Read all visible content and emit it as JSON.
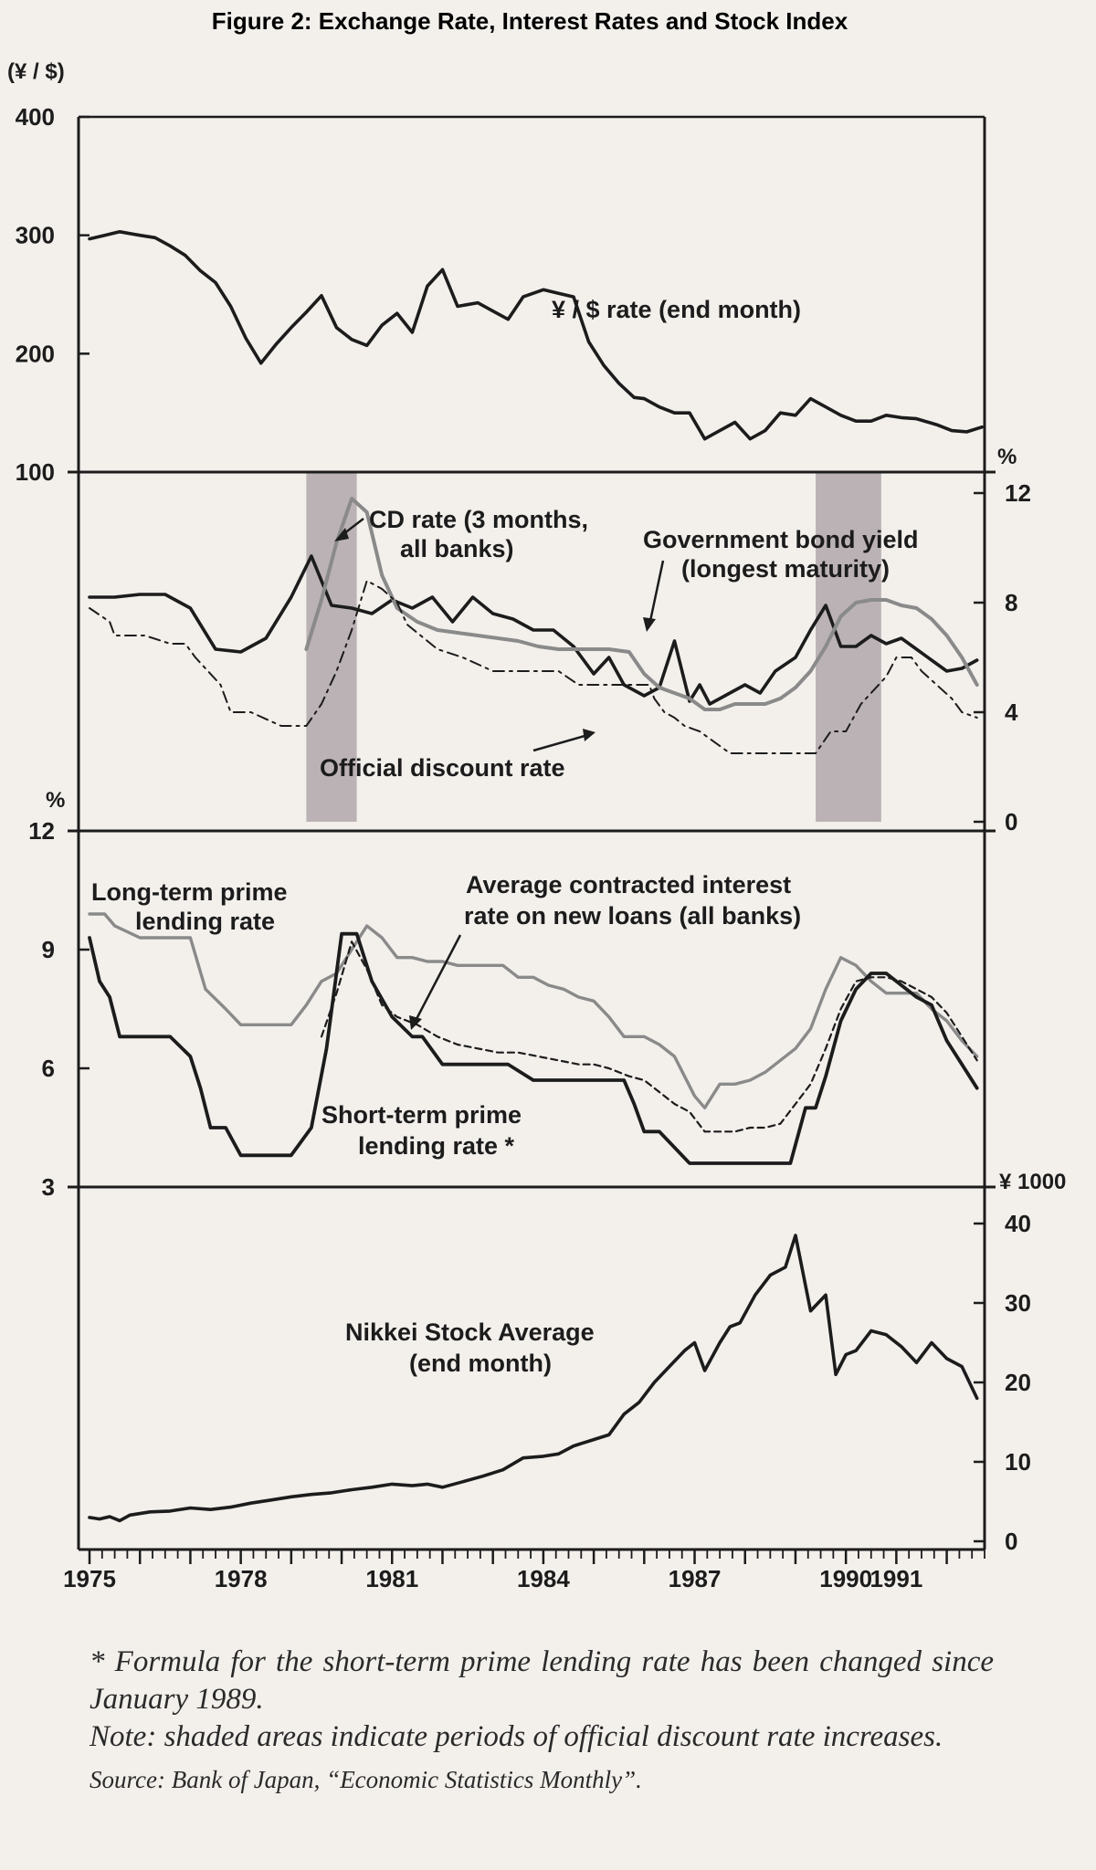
{
  "title": "Figure 2: Exchange Rate, Interest Rates and Stock Index",
  "colors": {
    "ink": "#1c1c1c",
    "gray_line": "#8a8a8a",
    "shade": "#8c7f88",
    "paper": "#f3f0ec"
  },
  "x_axis": {
    "ticks": [
      1975,
      1978,
      1981,
      1984,
      1987,
      1990,
      1991
    ],
    "tick_labels": [
      "1975",
      "1978",
      "1981",
      "1984",
      "1987",
      "1990",
      "1991"
    ]
  },
  "notes": [
    "* Formula for the short-term prime lending rate has been changed since January 1989.",
    "Note: shaded areas indicate periods of official discount rate increases."
  ],
  "source": "Source: Bank of Japan, “Economic Statistics Monthly”.",
  "chart_data": [
    {
      "type": "line",
      "unit_label": "(¥ / $)",
      "ylim": [
        100,
        400
      ],
      "y_ticks": [
        "400",
        "300",
        "200",
        "100"
      ],
      "series": [
        {
          "name": "¥ / $ rate (end month)",
          "x": [
            1975.0,
            1975.3,
            1975.6,
            1976.0,
            1976.3,
            1976.6,
            1976.9,
            1977.2,
            1977.5,
            1977.8,
            1978.1,
            1978.4,
            1978.7,
            1979.0,
            1979.3,
            1979.6,
            1979.9,
            1980.2,
            1980.5,
            1980.8,
            1981.1,
            1981.4,
            1981.7,
            1982.0,
            1982.3,
            1982.7,
            1983.0,
            1983.3,
            1983.6,
            1984.0,
            1984.3,
            1984.6,
            1984.9,
            1985.2,
            1985.5,
            1985.8,
            1986.0,
            1986.3,
            1986.6,
            1986.9,
            1987.2,
            1987.5,
            1987.8,
            1988.1,
            1988.4,
            1988.7,
            1989.0,
            1989.3,
            1989.6,
            1989.9,
            1990.2,
            1990.5,
            1990.8,
            1991.1,
            1991.4,
            1991.8,
            1992.1,
            1992.4,
            1992.7
          ],
          "y": [
            297,
            300,
            303,
            300,
            298,
            291,
            283,
            270,
            260,
            240,
            213,
            192,
            208,
            222,
            235,
            249,
            222,
            212,
            207,
            224,
            234,
            218,
            257,
            271,
            240,
            243,
            236,
            229,
            248,
            254,
            251,
            248,
            210,
            190,
            175,
            163,
            162,
            155,
            150,
            150,
            128,
            135,
            142,
            128,
            135,
            150,
            148,
            162,
            155,
            148,
            143,
            143,
            148,
            146,
            145,
            140,
            135,
            134,
            138
          ]
        }
      ]
    },
    {
      "type": "line",
      "unit_label": "%",
      "ylim": [
        0,
        12
      ],
      "y_ticks": [
        "12",
        "8",
        "4",
        "0"
      ],
      "shaded_periods": [
        [
          1979.3,
          1980.3
        ],
        [
          1989.4,
          1990.7
        ]
      ],
      "series": [
        {
          "name": "Government bond yield (longest maturity)",
          "x": [
            1975.0,
            1975.5,
            1976.0,
            1976.5,
            1977.0,
            1977.5,
            1978.0,
            1978.5,
            1979.0,
            1979.4,
            1979.8,
            1980.2,
            1980.6,
            1981.0,
            1981.4,
            1981.8,
            1982.2,
            1982.6,
            1983.0,
            1983.4,
            1983.8,
            1984.2,
            1984.6,
            1985.0,
            1985.3,
            1985.6,
            1986.0,
            1986.3,
            1986.6,
            1986.9,
            1987.1,
            1987.3,
            1987.6,
            1988.0,
            1988.3,
            1988.6,
            1989.0,
            1989.3,
            1989.6,
            1989.9,
            1990.2,
            1990.5,
            1990.8,
            1991.1,
            1991.4,
            1991.7,
            1992.0,
            1992.3,
            1992.6
          ],
          "y": [
            8.2,
            8.2,
            8.3,
            8.3,
            7.8,
            6.3,
            6.2,
            6.7,
            8.2,
            9.7,
            7.9,
            7.8,
            7.6,
            8.1,
            7.8,
            8.2,
            7.3,
            8.2,
            7.6,
            7.4,
            7.0,
            7.0,
            6.4,
            5.4,
            6.0,
            5.0,
            4.6,
            4.9,
            6.6,
            4.4,
            5.0,
            4.3,
            4.6,
            5.0,
            4.7,
            5.5,
            6.0,
            7.0,
            7.9,
            6.4,
            6.4,
            6.8,
            6.5,
            6.7,
            6.3,
            5.9,
            5.5,
            5.6,
            5.9
          ]
        },
        {
          "name": "CD rate (3 months, all banks)",
          "x": [
            1979.3,
            1979.6,
            1979.9,
            1980.2,
            1980.5,
            1980.8,
            1981.1,
            1981.5,
            1981.9,
            1982.3,
            1982.7,
            1983.1,
            1983.5,
            1983.9,
            1984.3,
            1984.7,
            1985.0,
            1985.3,
            1985.7,
            1986.0,
            1986.3,
            1986.6,
            1986.9,
            1987.2,
            1987.5,
            1987.8,
            1988.1,
            1988.4,
            1988.7,
            1989.0,
            1989.3,
            1989.6,
            1989.9,
            1990.2,
            1990.5,
            1990.8,
            1991.1,
            1991.4,
            1991.7,
            1992.0,
            1992.3,
            1992.6
          ],
          "y": [
            6.3,
            8.1,
            10.2,
            11.8,
            11.3,
            9.0,
            7.8,
            7.3,
            7.0,
            6.9,
            6.8,
            6.7,
            6.6,
            6.4,
            6.3,
            6.3,
            6.3,
            6.3,
            6.2,
            5.4,
            4.9,
            4.7,
            4.5,
            4.1,
            4.1,
            4.3,
            4.3,
            4.3,
            4.5,
            4.9,
            5.5,
            6.4,
            7.5,
            8.0,
            8.1,
            8.1,
            7.9,
            7.8,
            7.4,
            6.8,
            6.0,
            5.0
          ]
        },
        {
          "name": "Official discount rate",
          "x": [
            1975.0,
            1975.4,
            1975.5,
            1976.1,
            1976.6,
            1976.9,
            1977.1,
            1977.6,
            1977.8,
            1978.2,
            1978.8,
            1979.3,
            1979.6,
            1979.9,
            1980.2,
            1980.5,
            1980.8,
            1981.1,
            1981.3,
            1981.9,
            1982.4,
            1983.0,
            1983.5,
            1983.9,
            1984.3,
            1984.7,
            1985.1,
            1985.6,
            1986.1,
            1986.2,
            1986.4,
            1986.6,
            1986.8,
            1987.1,
            1987.7,
            1988.2,
            1988.6,
            1989.1,
            1989.4,
            1989.7,
            1990.0,
            1990.3,
            1990.8,
            1991.0,
            1991.3,
            1991.5,
            1991.8,
            1992.1,
            1992.3,
            1992.6
          ],
          "y": [
            7.8,
            7.3,
            6.8,
            6.8,
            6.5,
            6.5,
            6.0,
            5.0,
            4.0,
            4.0,
            3.5,
            3.5,
            4.3,
            5.5,
            7.0,
            8.8,
            8.5,
            8.0,
            7.2,
            6.3,
            6.0,
            5.5,
            5.5,
            5.5,
            5.5,
            5.0,
            5.0,
            5.0,
            5.0,
            4.5,
            4.0,
            3.8,
            3.5,
            3.3,
            2.5,
            2.5,
            2.5,
            2.5,
            2.5,
            3.3,
            3.3,
            4.3,
            5.3,
            6.0,
            6.0,
            5.5,
            5.0,
            4.5,
            4.0,
            3.8
          ]
        }
      ]
    },
    {
      "type": "line",
      "unit_label": "%",
      "ylim": [
        3,
        12
      ],
      "y_ticks": [
        "12",
        "9",
        "6",
        "3"
      ],
      "series": [
        {
          "name": "Long-term prime lending rate",
          "x": [
            1975.0,
            1975.3,
            1975.5,
            1976.0,
            1976.5,
            1977.0,
            1977.3,
            1977.7,
            1978.0,
            1978.5,
            1979.0,
            1979.3,
            1979.6,
            1979.9,
            1980.2,
            1980.5,
            1980.8,
            1981.1,
            1981.4,
            1981.7,
            1982.0,
            1982.3,
            1982.6,
            1982.9,
            1983.2,
            1983.5,
            1983.8,
            1984.1,
            1984.4,
            1984.7,
            1985.0,
            1985.3,
            1985.6,
            1986.0,
            1986.3,
            1986.6,
            1986.8,
            1987.0,
            1987.2,
            1987.5,
            1987.8,
            1988.1,
            1988.4,
            1988.7,
            1989.0,
            1989.3,
            1989.6,
            1989.9,
            1990.2,
            1990.5,
            1990.8,
            1991.1,
            1991.4,
            1991.7,
            1992.0,
            1992.3,
            1992.6
          ],
          "y": [
            9.9,
            9.9,
            9.6,
            9.3,
            9.3,
            9.3,
            8.0,
            7.5,
            7.1,
            7.1,
            7.1,
            7.6,
            8.2,
            8.4,
            9.0,
            9.6,
            9.3,
            8.8,
            8.8,
            8.7,
            8.7,
            8.6,
            8.6,
            8.6,
            8.6,
            8.3,
            8.3,
            8.1,
            8.0,
            7.8,
            7.7,
            7.3,
            6.8,
            6.8,
            6.6,
            6.3,
            5.8,
            5.3,
            5.0,
            5.6,
            5.6,
            5.7,
            5.9,
            6.2,
            6.5,
            7.0,
            8.0,
            8.8,
            8.6,
            8.2,
            7.9,
            7.9,
            7.9,
            7.5,
            7.2,
            6.7,
            6.3
          ]
        },
        {
          "name": "Average contracted interest rate on new loans (all banks)",
          "x": [
            1979.6,
            1979.9,
            1980.2,
            1980.5,
            1980.8,
            1981.1,
            1981.5,
            1981.9,
            1982.3,
            1982.7,
            1983.1,
            1983.5,
            1983.9,
            1984.3,
            1984.7,
            1985.0,
            1985.3,
            1985.7,
            1986.0,
            1986.3,
            1986.6,
            1986.9,
            1987.2,
            1987.5,
            1987.8,
            1988.1,
            1988.4,
            1988.7,
            1989.0,
            1989.3,
            1989.6,
            1989.9,
            1990.2,
            1990.5,
            1990.8,
            1991.1,
            1991.4,
            1991.7,
            1992.0,
            1992.3,
            1992.6
          ],
          "y": [
            6.8,
            7.9,
            9.2,
            8.5,
            7.6,
            7.3,
            7.1,
            6.8,
            6.6,
            6.5,
            6.4,
            6.4,
            6.3,
            6.2,
            6.1,
            6.1,
            6.0,
            5.8,
            5.7,
            5.4,
            5.1,
            4.9,
            4.4,
            4.4,
            4.4,
            4.5,
            4.5,
            4.6,
            5.1,
            5.6,
            6.5,
            7.5,
            8.2,
            8.3,
            8.3,
            8.2,
            8.0,
            7.8,
            7.4,
            6.8,
            6.2
          ]
        },
        {
          "name": "Short-term prime lending rate *",
          "x": [
            1975.0,
            1975.2,
            1975.4,
            1975.6,
            1976.0,
            1976.3,
            1976.6,
            1977.0,
            1977.2,
            1977.4,
            1977.7,
            1978.0,
            1978.3,
            1978.6,
            1979.0,
            1979.4,
            1979.7,
            1980.0,
            1980.3,
            1980.6,
            1981.0,
            1981.4,
            1981.6,
            1982.0,
            1982.5,
            1983.0,
            1983.3,
            1983.8,
            1984.2,
            1984.8,
            1985.2,
            1985.6,
            1985.8,
            1986.0,
            1986.3,
            1986.6,
            1986.9,
            1987.2,
            1987.6,
            1988.0,
            1988.3,
            1988.6,
            1988.9,
            1989.2,
            1989.4,
            1989.6,
            1989.9,
            1990.2,
            1990.5,
            1990.8,
            1991.1,
            1991.4,
            1991.7,
            1992.0,
            1992.3,
            1992.6
          ],
          "y": [
            9.3,
            8.2,
            7.8,
            6.8,
            6.8,
            6.8,
            6.8,
            6.3,
            5.5,
            4.5,
            4.5,
            3.8,
            3.8,
            3.8,
            3.8,
            4.5,
            6.5,
            9.4,
            9.4,
            8.2,
            7.3,
            6.8,
            6.8,
            6.1,
            6.1,
            6.1,
            6.1,
            5.7,
            5.7,
            5.7,
            5.7,
            5.7,
            5.1,
            4.4,
            4.4,
            4.0,
            3.6,
            3.6,
            3.6,
            3.6,
            3.6,
            3.6,
            3.6,
            5.0,
            5.0,
            5.8,
            7.2,
            8.0,
            8.4,
            8.4,
            8.1,
            7.8,
            7.6,
            6.7,
            6.1,
            5.5
          ]
        }
      ]
    },
    {
      "type": "line",
      "unit_label": "¥ 1000",
      "ylim": [
        0,
        40
      ],
      "y_ticks": [
        "40",
        "30",
        "20",
        "10",
        "0"
      ],
      "series": [
        {
          "name": "Nikkei Stock Average (end month)",
          "x": [
            1975.0,
            1975.2,
            1975.4,
            1975.6,
            1975.8,
            1976.2,
            1976.6,
            1977.0,
            1977.4,
            1977.8,
            1978.2,
            1978.6,
            1979.0,
            1979.4,
            1979.8,
            1980.2,
            1980.6,
            1981.0,
            1981.4,
            1981.7,
            1982.0,
            1982.4,
            1982.8,
            1983.2,
            1983.6,
            1984.0,
            1984.3,
            1984.6,
            1985.0,
            1985.3,
            1985.6,
            1985.9,
            1986.2,
            1986.5,
            1986.8,
            1987.0,
            1987.2,
            1987.5,
            1987.7,
            1987.9,
            1988.2,
            1988.5,
            1988.8,
            1989.0,
            1989.3,
            1989.6,
            1989.8,
            1990.0,
            1990.2,
            1990.5,
            1990.8,
            1991.1,
            1991.4,
            1991.7,
            1992.0,
            1992.3,
            1992.6
          ],
          "y": [
            3.0,
            2.8,
            3.1,
            2.6,
            3.3,
            3.7,
            3.8,
            4.2,
            4.0,
            4.3,
            4.8,
            5.2,
            5.6,
            5.9,
            6.1,
            6.5,
            6.8,
            7.2,
            7.0,
            7.2,
            6.8,
            7.5,
            8.2,
            9.0,
            10.5,
            10.7,
            11.0,
            12.0,
            12.8,
            13.4,
            16.0,
            17.5,
            20.0,
            22.0,
            24.0,
            25.0,
            21.5,
            25.0,
            27.0,
            27.5,
            31.0,
            33.5,
            34.5,
            38.5,
            29.0,
            31.0,
            21.0,
            23.5,
            24.0,
            26.5,
            26.0,
            24.5,
            22.5,
            25.0,
            23.0,
            22.0,
            18.0
          ]
        }
      ]
    }
  ],
  "labels": {
    "fx": "¥ / $ rate (end month)",
    "cd_1": "CD rate (3 months,",
    "cd_2": "all  banks)",
    "gb_1": "Government bond yield",
    "gb_2": "(longest maturity)",
    "odr": "Official discount rate",
    "lt_1": "Long-term prime",
    "lt_2": "lending rate",
    "avg_1": "Average contracted interest",
    "avg_2": "rate on new loans (all banks)",
    "st_1": "Short-term prime",
    "st_2": "lending rate *",
    "nk_1": "Nikkei Stock Average",
    "nk_2": "(end month)"
  }
}
